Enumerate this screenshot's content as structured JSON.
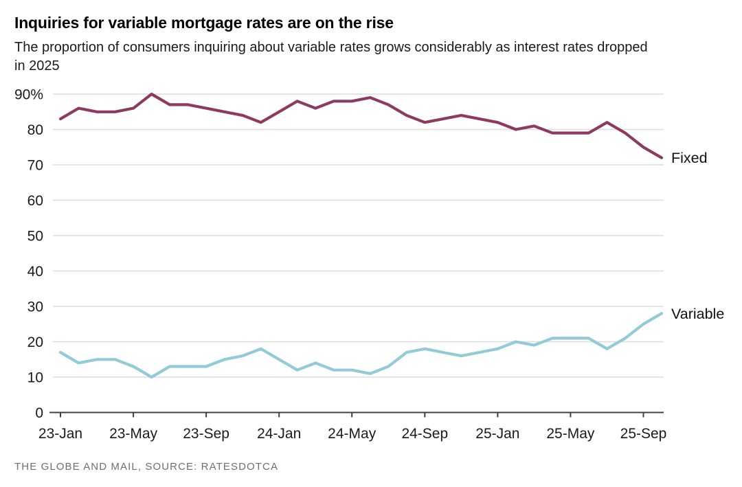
{
  "header": {
    "title": "Inquiries for variable mortgage rates are on the rise",
    "subtitle_lines": [
      "The proportion of consumers inquiring about variable rates grows considerably as interest rates dropped",
      "in 2025"
    ]
  },
  "footer": {
    "credit": "THE GLOBE AND MAIL, SOURCE: RATESDOTCA"
  },
  "chart_data": {
    "type": "line",
    "title": "Inquiries for variable mortgage rates are on the rise",
    "subtitle": "The proportion of consumers inquiring about variable rates grows considerably as interest rates dropped in 2025",
    "x_unit": "month",
    "categories": [
      "23-Jan",
      "23-Feb",
      "23-Mar",
      "23-Apr",
      "23-May",
      "23-Jun",
      "23-Jul",
      "23-Aug",
      "23-Sep",
      "23-Oct",
      "23-Nov",
      "23-Dec",
      "24-Jan",
      "24-Feb",
      "24-Mar",
      "24-Apr",
      "24-May",
      "24-Jun",
      "24-Jul",
      "24-Aug",
      "24-Sep",
      "24-Oct",
      "24-Nov",
      "24-Dec",
      "25-Jan",
      "25-Feb",
      "25-Mar",
      "25-Apr",
      "25-May",
      "25-Jun",
      "25-Jul",
      "25-Aug",
      "25-Sep",
      "25-Oct"
    ],
    "series": [
      {
        "name": "Fixed",
        "color": "#8c3a60",
        "values": [
          83,
          86,
          85,
          85,
          86,
          90,
          87,
          87,
          86,
          85,
          84,
          82,
          85,
          88,
          86,
          88,
          88,
          89,
          87,
          84,
          82,
          83,
          84,
          83,
          82,
          80,
          81,
          79,
          79,
          79,
          82,
          79,
          75,
          72
        ]
      },
      {
        "name": "Variable",
        "color": "#92cbd5",
        "values": [
          17,
          14,
          15,
          15,
          13,
          10,
          13,
          13,
          13,
          15,
          16,
          18,
          15,
          12,
          14,
          12,
          12,
          11,
          13,
          17,
          18,
          17,
          16,
          17,
          18,
          20,
          19,
          21,
          21,
          21,
          18,
          21,
          25,
          28
        ]
      }
    ],
    "ylim": [
      0,
      90
    ],
    "y_ticks": [
      0,
      10,
      20,
      30,
      40,
      50,
      60,
      70,
      80,
      90
    ],
    "y_tick_labels": [
      "0",
      "10",
      "20",
      "30",
      "40",
      "50",
      "60",
      "70",
      "80",
      "90%"
    ],
    "x_tick_indices": [
      0,
      4,
      8,
      12,
      16,
      20,
      24,
      28,
      32
    ],
    "x_tick_labels": [
      "23-Jan",
      "23-May",
      "23-Sep",
      "24-Jan",
      "24-May",
      "24-Sep",
      "25-Jan",
      "25-May",
      "25-Sep"
    ],
    "grid": true,
    "legend_position": "line-end-labels",
    "colors": {
      "grid": "#dcdcdc",
      "axis": "#404040",
      "text": "#1a1a1a",
      "label": "#111111"
    }
  }
}
